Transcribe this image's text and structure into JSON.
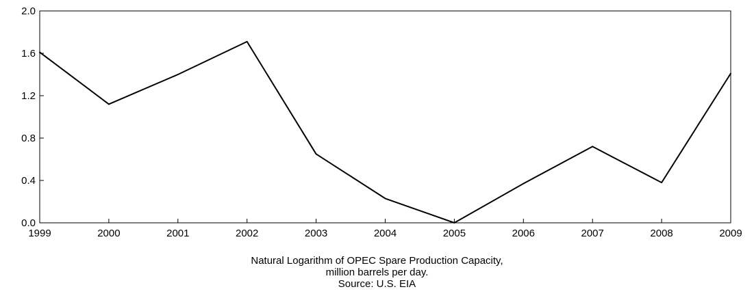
{
  "chart_data": {
    "type": "line",
    "title": "",
    "xlabel": "",
    "ylabel": "",
    "x": [
      "1999",
      "2000",
      "2001",
      "2002",
      "2003",
      "2004",
      "2005",
      "2006",
      "2007",
      "2008",
      "2009"
    ],
    "series": [
      {
        "values": [
          1.61,
          1.12,
          1.4,
          1.71,
          0.65,
          0.23,
          0.0,
          0.37,
          0.72,
          0.38,
          1.41
        ]
      }
    ],
    "y_ticks": [
      "0.0",
      "0.4",
      "0.8",
      "1.2",
      "1.6",
      "2.0"
    ],
    "ylim": [
      0,
      2.0
    ],
    "grid": false,
    "line_color": "#000000"
  },
  "caption": {
    "line1": "Natural Logarithm of OPEC Spare Production Capacity,",
    "line2": "million barrels per day.",
    "line3": "Source: U.S. EIA"
  }
}
